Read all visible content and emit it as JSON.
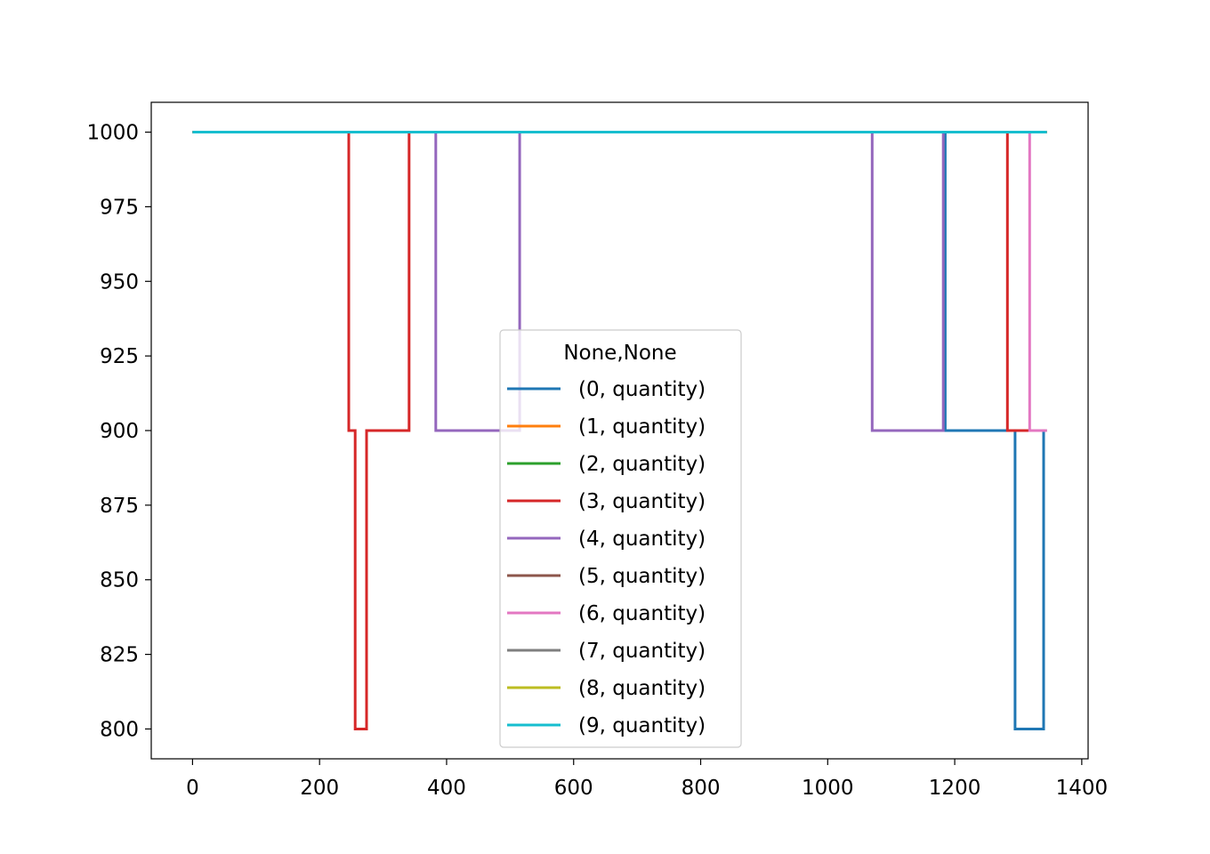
{
  "chart_data": {
    "type": "line",
    "title": "",
    "xlabel": "",
    "ylabel": "",
    "xlim": [
      -65,
      1410
    ],
    "ylim": [
      790,
      1010
    ],
    "xticks": [
      0,
      200,
      400,
      600,
      800,
      1000,
      1200,
      1400
    ],
    "yticks": [
      800,
      825,
      850,
      875,
      900,
      925,
      950,
      975,
      1000
    ],
    "grid": false,
    "legend": {
      "title": "None,None",
      "placement": "center-bottom"
    },
    "series": [
      {
        "name": "(0, quantity)",
        "color": "#1f77b4",
        "x": [
          0,
          1185,
          1185,
          1295,
          1295,
          1340,
          1340,
          1345
        ],
        "y": [
          1000,
          1000,
          900,
          900,
          800,
          800,
          900,
          900
        ]
      },
      {
        "name": "(1, quantity)",
        "color": "#ff7f0e",
        "x": [
          0,
          1345
        ],
        "y": [
          1000,
          1000
        ]
      },
      {
        "name": "(2, quantity)",
        "color": "#2ca02c",
        "x": [
          0,
          1345
        ],
        "y": [
          1000,
          1000
        ]
      },
      {
        "name": "(3, quantity)",
        "color": "#d62728",
        "x": [
          0,
          246,
          246,
          256,
          256,
          274,
          274,
          341,
          341,
          1283,
          1283,
          1345
        ],
        "y": [
          1000,
          1000,
          900,
          900,
          800,
          800,
          900,
          900,
          1000,
          1000,
          900,
          900
        ]
      },
      {
        "name": "(4, quantity)",
        "color": "#9467bd",
        "x": [
          0,
          383,
          383,
          515,
          515,
          1070,
          1070,
          1182,
          1182,
          1345
        ],
        "y": [
          1000,
          1000,
          900,
          900,
          1000,
          1000,
          900,
          900,
          1000,
          1000
        ]
      },
      {
        "name": "(5, quantity)",
        "color": "#8c564b",
        "x": [
          0,
          1345
        ],
        "y": [
          1000,
          1000
        ]
      },
      {
        "name": "(6, quantity)",
        "color": "#e377c2",
        "x": [
          0,
          1318,
          1318,
          1345
        ],
        "y": [
          1000,
          1000,
          900,
          900
        ]
      },
      {
        "name": "(7, quantity)",
        "color": "#7f7f7f",
        "x": [
          0,
          1345
        ],
        "y": [
          1000,
          1000
        ]
      },
      {
        "name": "(8, quantity)",
        "color": "#bcbd22",
        "x": [
          0,
          1345
        ],
        "y": [
          1000,
          1000
        ]
      },
      {
        "name": "(9, quantity)",
        "color": "#17becf",
        "x": [
          0,
          1345
        ],
        "y": [
          1000,
          1000
        ]
      }
    ]
  }
}
